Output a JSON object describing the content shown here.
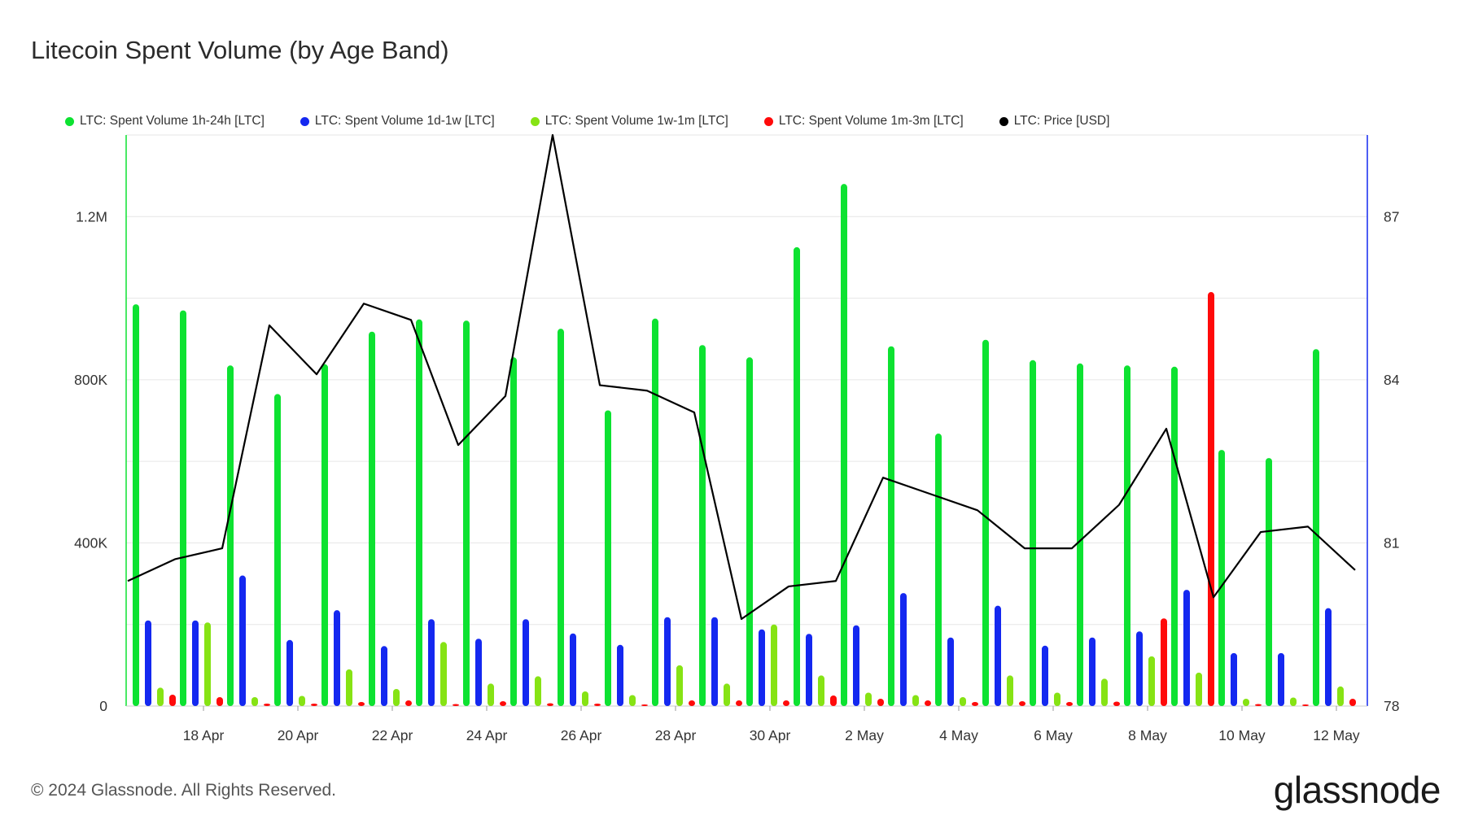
{
  "title": "Litecoin Spent Volume (by Age Band)",
  "footer": "© 2024 Glassnode. All Rights Reserved.",
  "brand": "glassnode",
  "legend": [
    {
      "label": "LTC: Spent Volume 1h-24h [LTC]",
      "color": "#0de231"
    },
    {
      "label": "LTC: Spent Volume 1d-1w [LTC]",
      "color": "#1428f0"
    },
    {
      "label": "LTC: Spent Volume 1w-1m [LTC]",
      "color": "#86e314"
    },
    {
      "label": "LTC: Spent Volume 1m-3m [LTC]",
      "color": "#ff0a0a"
    },
    {
      "label": "LTC: Price [USD]",
      "color": "#000000"
    }
  ],
  "chart_data": {
    "type": "bar",
    "x": [
      "17 Apr",
      "18 Apr",
      "19 Apr",
      "20 Apr",
      "21 Apr",
      "22 Apr",
      "23 Apr",
      "24 Apr",
      "25 Apr",
      "26 Apr",
      "27 Apr",
      "28 Apr",
      "29 Apr",
      "30 Apr",
      "1 May",
      "2 May",
      "3 May",
      "4 May",
      "5 May",
      "6 May",
      "7 May",
      "8 May",
      "9 May",
      "10 May",
      "11 May",
      "12 May",
      "13 May"
    ],
    "x_tick_labels": [
      "18 Apr",
      "20 Apr",
      "22 Apr",
      "24 Apr",
      "26 Apr",
      "28 Apr",
      "30 Apr",
      "2 May",
      "4 May",
      "6 May",
      "8 May",
      "10 May",
      "12 May"
    ],
    "y_left": {
      "ticks": [
        0,
        400000,
        800000,
        1200000
      ],
      "tick_labels": [
        "0",
        "400K",
        "800K",
        "1.2M"
      ],
      "range": [
        0,
        1400000
      ]
    },
    "y_right": {
      "ticks": [
        78,
        81,
        84,
        87
      ],
      "tick_labels": [
        "78",
        "81",
        "84",
        "87"
      ],
      "range": [
        78,
        88.5
      ]
    },
    "grid": true,
    "legend_position": "top",
    "series": [
      {
        "name": "LTC: Spent Volume 1h-24h [LTC]",
        "type": "bar",
        "axis": "left",
        "color": "#0de231",
        "values": [
          985000,
          970000,
          835000,
          765000,
          838000,
          918000,
          948000,
          945000,
          855000,
          925000,
          725000,
          950000,
          885000,
          855000,
          1125000,
          1280000,
          882000,
          668000,
          898000,
          848000,
          840000,
          835000,
          832000,
          628000,
          608000,
          875000,
          0
        ]
      },
      {
        "name": "LTC: Spent Volume 1d-1w [LTC]",
        "type": "bar",
        "axis": "left",
        "color": "#1428f0",
        "values": [
          210000,
          210000,
          320000,
          162000,
          235000,
          147000,
          213000,
          165000,
          213000,
          178000,
          150000,
          218000,
          218000,
          188000,
          177000,
          198000,
          277000,
          168000,
          246000,
          148000,
          168000,
          183000,
          285000,
          130000,
          130000,
          240000,
          0
        ]
      },
      {
        "name": "LTC: Spent Volume 1w-1m [LTC]",
        "type": "bar",
        "axis": "left",
        "color": "#86e314",
        "values": [
          45000,
          205000,
          22000,
          25000,
          90000,
          42000,
          157000,
          55000,
          73000,
          36000,
          27000,
          100000,
          55000,
          200000,
          75000,
          33000,
          27000,
          22000,
          75000,
          33000,
          67000,
          122000,
          82000,
          18000,
          21000,
          48000,
          0
        ]
      },
      {
        "name": "LTC: Spent Volume 1m-3m [LTC]",
        "type": "bar",
        "axis": "left",
        "color": "#ff0a0a",
        "values": [
          28000,
          22000,
          6000,
          6000,
          10000,
          14000,
          5000,
          12000,
          7000,
          6000,
          4000,
          14000,
          14000,
          14000,
          26000,
          18000,
          14000,
          10000,
          12000,
          10000,
          11000,
          215000,
          1015000,
          5000,
          4000,
          18000,
          0
        ]
      },
      {
        "name": "LTC: Price [USD]",
        "type": "line",
        "axis": "right",
        "color": "#000000",
        "values": [
          80.3,
          80.7,
          80.9,
          85.0,
          84.1,
          85.4,
          85.1,
          82.8,
          83.7,
          88.5,
          83.9,
          83.8,
          83.4,
          79.6,
          80.2,
          80.3,
          82.2,
          81.9,
          81.6,
          80.9,
          80.9,
          81.7,
          83.1,
          80.0,
          81.2,
          81.3,
          80.5
        ]
      }
    ]
  }
}
